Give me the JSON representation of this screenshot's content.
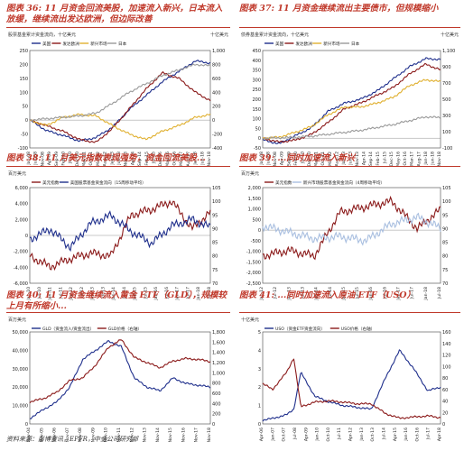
{
  "captions": [
    "图表 36: 11 月资金回流美股，加速流入新兴，日本流入放缓，继续流出发达欧洲，但边际改善",
    "图表 37: 11 月资金继续流出主要债市，但规模缩小",
    "图表 38: 11 月美元指数表现强势，资金回流美股...",
    "图表 39: ...同时加速流入新兴",
    "图表 40: 11 月资金继续流入黄金 ETF（GLD），规模较上月有所缩小...",
    "图表 41: ...同时加速流入原油 ETF（USO）"
  ],
  "source": "资料来源：彭博资讯，EPFR，中金公司研究部",
  "colors": {
    "navy": "#1f2f8c",
    "dark_red": "#8b1a1a",
    "gold": "#e0b030",
    "grey": "#9a9a9a",
    "light_blue": "#a9bfe0",
    "caption_red": "#c0392b"
  },
  "chart_data": [
    {
      "type": "line",
      "ylabel_left": "股票基金累计资金流向，十亿美元",
      "ylabel_right": "十亿美元",
      "ylim": [
        -100,
        250
      ],
      "ylim_right": [
        -400,
        1000
      ],
      "yticks": [
        "250",
        "200",
        "150",
        "100",
        "50",
        "0",
        "-50",
        "-100"
      ],
      "yticks_right": [
        "1,000",
        "800",
        "600",
        "400",
        "200",
        "0",
        "-200",
        "-400"
      ],
      "xticks": [
        "Jan-08",
        "Jun-08",
        "Nov-08",
        "Apr-09",
        "Sep-09",
        "Feb-10",
        "Jul-10",
        "Dec-10",
        "May-11",
        "Oct-11",
        "Mar-12",
        "Aug-12",
        "Jan-13",
        "Jun-13",
        "Nov-13",
        "Apr-14",
        "Sep-14",
        "Feb-15",
        "Jul-15",
        "Dec-15",
        "May-16",
        "Oct-16",
        "Mar-17",
        "Aug-17",
        "Jan-18",
        "Jun-18",
        "Nov-18"
      ],
      "x": [
        2008,
        2009,
        2010,
        2011,
        2012,
        2013,
        2014,
        2015,
        2016,
        2017,
        2018,
        2018.9
      ],
      "series": [
        {
          "name": "美国",
          "axis": "right",
          "values": [
            0,
            -150,
            -220,
            -300,
            -250,
            -100,
            150,
            350,
            550,
            700,
            850,
            820
          ]
        },
        {
          "name": "发达欧洲",
          "axis": "left",
          "values": [
            0,
            -20,
            -40,
            -70,
            -80,
            -30,
            40,
            110,
            170,
            150,
            100,
            70
          ]
        },
        {
          "name": "新兴市场",
          "axis": "left",
          "values": [
            0,
            -20,
            10,
            20,
            15,
            -20,
            -50,
            -70,
            -40,
            -20,
            10,
            20
          ]
        },
        {
          "name": "日本",
          "axis": "left",
          "values": [
            0,
            5,
            10,
            15,
            25,
            60,
            100,
            130,
            160,
            180,
            200,
            195
          ]
        }
      ]
    },
    {
      "type": "line",
      "ylabel_left": "债券基金累计资金流向，十亿美元",
      "ylabel_right": "十亿美元",
      "ylim": [
        -50,
        450
      ],
      "ylim_right": [
        -100,
        1100
      ],
      "yticks": [
        "450",
        "400",
        "350",
        "300",
        "250",
        "200",
        "150",
        "100",
        "50",
        "0",
        "-50"
      ],
      "yticks_right": [
        "1,100",
        "900",
        "700",
        "500",
        "300",
        "100",
        "-100"
      ],
      "xticks": [
        "Jan-08",
        "Jun-08",
        "Nov-08",
        "Apr-09",
        "Sep-09",
        "Feb-10",
        "Jul-10",
        "Dec-10",
        "May-11",
        "Oct-11",
        "Mar-12",
        "Aug-12",
        "Jan-13",
        "Jun-13",
        "Nov-13",
        "Apr-14",
        "Sep-14",
        "Feb-15",
        "Jul-15",
        "Dec-15",
        "May-16",
        "Oct-16",
        "Mar-17",
        "Aug-17",
        "Jan-18",
        "Jun-18",
        "Nov-18"
      ],
      "x": [
        2008,
        2009,
        2010,
        2011,
        2012,
        2013,
        2014,
        2015,
        2016,
        2017,
        2018,
        2018.9
      ],
      "series": [
        {
          "name": "美国",
          "axis": "right",
          "values": [
            0,
            -50,
            50,
            150,
            350,
            450,
            500,
            600,
            750,
            900,
            1000,
            990
          ]
        },
        {
          "name": "发达欧洲",
          "axis": "left",
          "values": [
            0,
            -20,
            -10,
            20,
            80,
            150,
            180,
            220,
            260,
            330,
            380,
            350
          ]
        },
        {
          "name": "新兴市场",
          "axis": "left",
          "values": [
            0,
            5,
            30,
            60,
            120,
            160,
            160,
            180,
            210,
            270,
            300,
            290
          ]
        },
        {
          "name": "日本",
          "axis": "left",
          "values": [
            0,
            2,
            5,
            10,
            20,
            30,
            40,
            55,
            70,
            90,
            110,
            105
          ]
        }
      ]
    },
    {
      "type": "line",
      "ylabel_left": "百万美元",
      "ylim": [
        -6000,
        6000
      ],
      "ylim_right": [
        70,
        105
      ],
      "yticks": [
        "6,000",
        "4,000",
        "2,000",
        "0",
        "-2,000",
        "-4,000",
        "-6,000"
      ],
      "yticks_right": [
        "105",
        "100",
        "95",
        "90",
        "85",
        "80",
        "75",
        "70"
      ],
      "xticks": [
        "Jan-10",
        "Jul-10",
        "Jan-11",
        "Jul-11",
        "Jan-12",
        "Jul-12",
        "Jan-13",
        "Jul-13",
        "Jan-14",
        "Jul-14",
        "Jan-15",
        "Jul-15",
        "Jan-16",
        "Jul-16",
        "Jan-17",
        "Jul-17",
        "Jan-18",
        "Jul-18"
      ],
      "x": [
        2010,
        2011,
        2012,
        2013,
        2014,
        2015,
        2016,
        2017,
        2018,
        2018.9
      ],
      "series": [
        {
          "name": "美元指数",
          "axis": "right",
          "values": [
            80,
            76,
            79,
            81,
            80,
            95,
            97,
            100,
            90,
            96
          ]
        },
        {
          "name": "美国股票基金资金流向（15周移动平均）",
          "axis": "left",
          "values": [
            -500,
            800,
            -1500,
            1500,
            2500,
            500,
            -1000,
            1200,
            2000,
            1000
          ]
        }
      ]
    },
    {
      "type": "line",
      "ylabel_left": "百万美元",
      "ylim": [
        -2500,
        2000
      ],
      "ylim_right": [
        70,
        105
      ],
      "yticks": [
        "2,000",
        "1,500",
        "1,000",
        "500",
        "0",
        "-500",
        "-1,000",
        "-1,500",
        "-2,000",
        "-2,500"
      ],
      "yticks_right": [
        "105",
        "100",
        "95",
        "90",
        "85",
        "80",
        "75",
        "70"
      ],
      "xticks": [
        "Jan-12",
        "Jul-12",
        "Jan-13",
        "Jul-13",
        "Jan-14",
        "Jul-14",
        "Jan-15",
        "Jul-15",
        "Jan-16",
        "Jul-16",
        "Jan-17",
        "Jul-17",
        "Jan-18",
        "Jul-18"
      ],
      "x": [
        2012,
        2013,
        2014,
        2015,
        2016,
        2017,
        2018,
        2018.9
      ],
      "series": [
        {
          "name": "美元指数",
          "axis": "right",
          "values": [
            80,
            82,
            80,
            96,
            98,
            100,
            90,
            97
          ]
        },
        {
          "name": "新兴市场股票基金资金流向（4周移动平均）",
          "axis": "left",
          "values": [
            200,
            -100,
            -400,
            -300,
            -500,
            300,
            600,
            100
          ]
        }
      ]
    },
    {
      "type": "line",
      "ylabel_left": "百万美元",
      "ylim": [
        0,
        50000
      ],
      "ylim_right": [
        0,
        1800
      ],
      "yticks": [
        "50,000",
        "40,000",
        "30,000",
        "20,000",
        "10,000",
        "0"
      ],
      "yticks_right": [
        "1,800",
        "1,600",
        "1,400",
        "1,200",
        "1,000",
        "800",
        "600",
        "400",
        "200",
        "0"
      ],
      "xticks": [
        "Nov-04",
        "Nov-05",
        "Nov-06",
        "Nov-07",
        "Nov-08",
        "Nov-09",
        "Nov-10",
        "Nov-11",
        "Nov-12",
        "Nov-13",
        "Nov-14",
        "Nov-15",
        "Nov-16",
        "Nov-17",
        "Nov-18"
      ],
      "x": [
        2004.9,
        2006,
        2007,
        2008,
        2009,
        2010,
        2011,
        2012,
        2013,
        2014,
        2015,
        2016,
        2017,
        2018,
        2018.9
      ],
      "series": [
        {
          "name": "GLD（资金流入/资金流出）",
          "axis": "left",
          "values": [
            3000,
            8000,
            12000,
            20000,
            35000,
            40000,
            45000,
            42000,
            25000,
            20000,
            18000,
            25000,
            22000,
            21000,
            20000
          ]
        },
        {
          "name": "GLD价格（右轴）",
          "axis": "right",
          "values": [
            430,
            500,
            620,
            850,
            900,
            1150,
            1500,
            1650,
            1300,
            1200,
            1100,
            1230,
            1280,
            1260,
            1220
          ]
        }
      ]
    },
    {
      "type": "line",
      "ylabel_left": "十亿美元",
      "ylim": [
        0,
        5
      ],
      "ylim_right": [
        0,
        160
      ],
      "yticks": [
        "5",
        "4",
        "3",
        "2",
        "1",
        "0"
      ],
      "yticks_right": [
        "160",
        "140",
        "120",
        "100",
        "80",
        "60",
        "40",
        "20",
        "0"
      ],
      "xticks": [
        "Apr-06",
        "Jan-07",
        "Oct-07",
        "Jul-08",
        "Apr-09",
        "Jan-10",
        "Oct-10",
        "Jul-11",
        "Apr-12",
        "Jan-13",
        "Oct-13",
        "Jul-14",
        "Apr-15",
        "Jan-16",
        "Oct-16",
        "Jul-17",
        "Apr-18"
      ],
      "x": [
        2006.3,
        2007,
        2008,
        2008.5,
        2009,
        2010,
        2011,
        2012,
        2013,
        2014,
        2015,
        2016,
        2017,
        2018,
        2018.9
      ],
      "series": [
        {
          "name": "USO（资金ETF资金流向）",
          "axis": "left",
          "values": [
            0.2,
            0.3,
            0.5,
            0.8,
            2.8,
            1.5,
            1.2,
            1.0,
            0.9,
            0.8,
            2.5,
            4.0,
            3.0,
            1.8,
            2.0
          ]
        },
        {
          "name": "USO价格（右轴）",
          "axis": "right",
          "values": [
            70,
            60,
            90,
            115,
            30,
            38,
            40,
            38,
            35,
            35,
            18,
            10,
            12,
            14,
            11
          ]
        }
      ]
    }
  ]
}
